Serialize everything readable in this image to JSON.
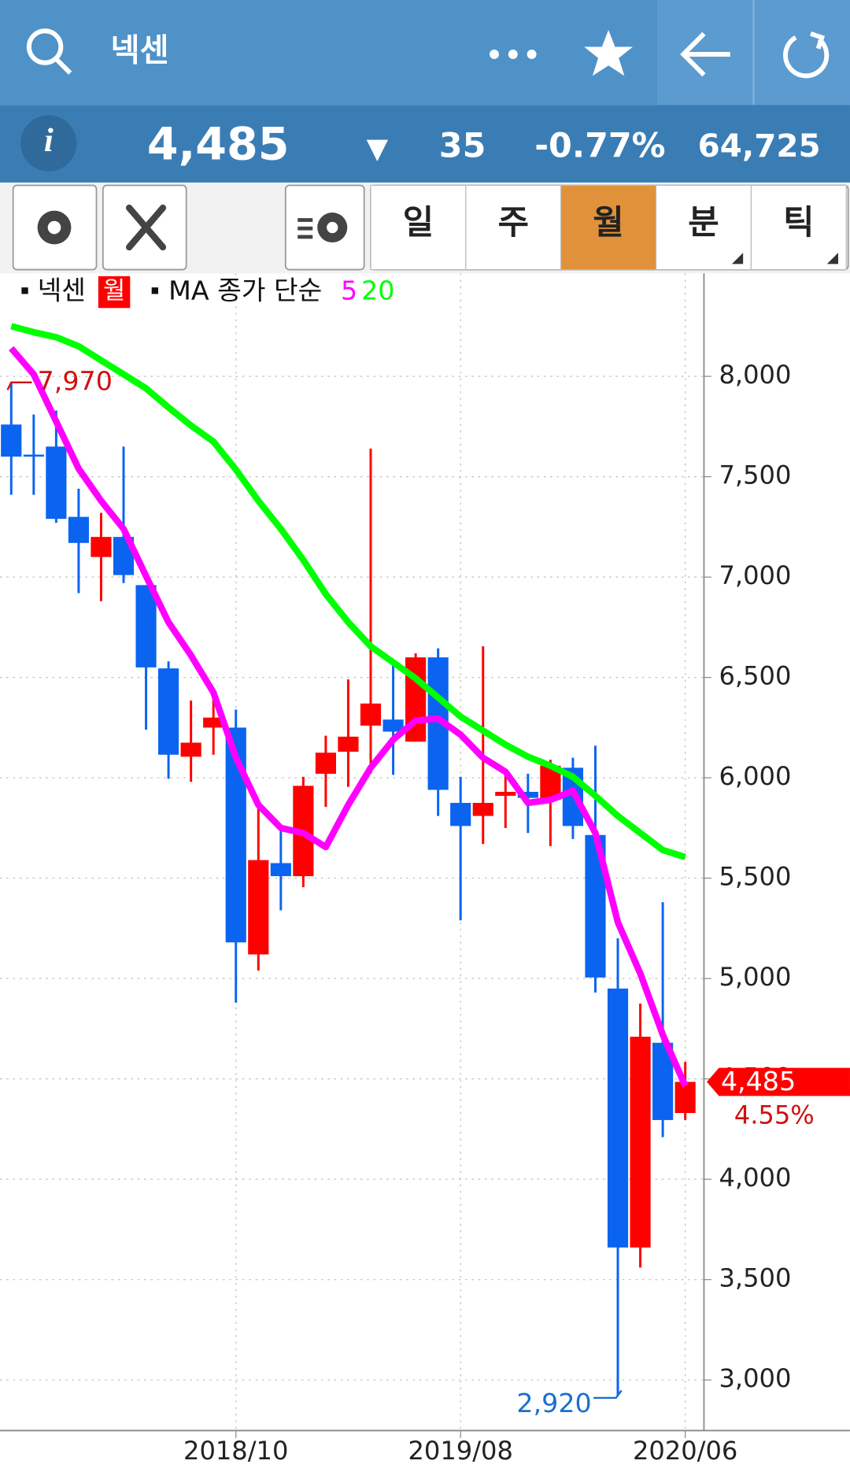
{
  "header": {
    "name": "넥센"
  },
  "quote": {
    "price": "4,485",
    "direction": "▼",
    "change": "35",
    "change_pct": "-0.77%",
    "volume": "64,725"
  },
  "tabs": [
    "일",
    "주",
    "월",
    "분",
    "틱"
  ],
  "selected_tab": 2,
  "chart_data": {
    "type": "candlestick",
    "ma_label": "MA 종가 단순",
    "categories": [
      null,
      null,
      null,
      null,
      null,
      null,
      null,
      null,
      null,
      null,
      "2018/10",
      null,
      null,
      null,
      null,
      null,
      null,
      null,
      null,
      null,
      "2019/08",
      null,
      null,
      null,
      null,
      null,
      null,
      null,
      null,
      null,
      "2020/06"
    ],
    "series": [
      {
        "name": "넥센",
        "tag": "월",
        "up_color": "#ff0000",
        "down_color": "#0a64f0",
        "open": [
          7760,
          7610,
          7650,
          7300,
          7100,
          7200,
          6960,
          6545,
          6105,
          6250,
          6250,
          5120,
          5575,
          5510,
          6020,
          6130,
          6260,
          6290,
          6180,
          6600,
          5875,
          5810,
          5910,
          5930,
          5890,
          6050,
          5715,
          4950,
          3660,
          4680,
          4330
        ],
        "high": [
          7970,
          7810,
          7830,
          7440,
          7320,
          7650,
          6960,
          6580,
          6385,
          6430,
          6340,
          5870,
          5740,
          6005,
          6210,
          6490,
          7640,
          6580,
          6620,
          6645,
          6005,
          6655,
          6015,
          6020,
          6090,
          6100,
          6160,
          5200,
          4875,
          5380,
          4585
        ],
        "low": [
          7410,
          7410,
          7270,
          6920,
          6880,
          6970,
          6240,
          5995,
          5980,
          6115,
          4880,
          5040,
          5340,
          5455,
          5855,
          5955,
          6020,
          6015,
          6180,
          5810,
          5290,
          5670,
          5750,
          5725,
          5660,
          5695,
          4930,
          2920,
          3560,
          4210,
          4295
        ],
        "close": [
          7600,
          7600,
          7290,
          7170,
          7200,
          7010,
          6550,
          6115,
          6175,
          6300,
          5180,
          5590,
          5510,
          5960,
          6125,
          6205,
          6370,
          6230,
          6600,
          5940,
          5760,
          5875,
          5930,
          5900,
          6060,
          5760,
          5005,
          3660,
          4710,
          4295,
          4485
        ]
      },
      {
        "name": "5",
        "color": "#ff00ff",
        "values": [
          8140,
          8010,
          7775,
          7540,
          7380,
          7240,
          7005,
          6775,
          6610,
          6425,
          6100,
          5865,
          5750,
          5725,
          5655,
          5865,
          6050,
          6190,
          6285,
          6295,
          6215,
          6100,
          6030,
          5875,
          5890,
          5935,
          5725,
          5280,
          5025,
          4720,
          4465
        ]
      },
      {
        "name": "20",
        "color": "#00ff00",
        "values": [
          8250,
          8220,
          8195,
          8150,
          8080,
          8010,
          7940,
          7845,
          7755,
          7675,
          7535,
          7380,
          7240,
          7085,
          6915,
          6775,
          6655,
          6575,
          6495,
          6400,
          6305,
          6235,
          6165,
          6105,
          6060,
          6005,
          5910,
          5810,
          5725,
          5640,
          5605
        ]
      }
    ],
    "ylim": [
      2748,
      8499
    ],
    "yticks": [
      {
        "value": 3000,
        "label": "3,000"
      },
      {
        "value": 3500,
        "label": "3,500"
      },
      {
        "value": 4000,
        "label": "4,000"
      },
      {
        "value": 4500,
        "label": "4,500"
      },
      {
        "value": 5000,
        "label": "5,000"
      },
      {
        "value": 5500,
        "label": "5,500"
      },
      {
        "value": 6000,
        "label": "6,000"
      },
      {
        "value": 6500,
        "label": "6,500"
      },
      {
        "value": 7000,
        "label": "7,000"
      },
      {
        "value": 7500,
        "label": "7,500"
      },
      {
        "value": 8000,
        "label": "8,000"
      }
    ],
    "grid": true,
    "annotations": [
      {
        "value": 7970,
        "label": "7,970",
        "index": 0,
        "color": "#d01010"
      },
      {
        "value": 2920,
        "label": "2,920",
        "index": 27,
        "color": "#1a6fd0"
      }
    ],
    "price_tag": {
      "value": 4485,
      "label": "4,485",
      "sub": "4.55%",
      "color": "#ff0000"
    }
  }
}
